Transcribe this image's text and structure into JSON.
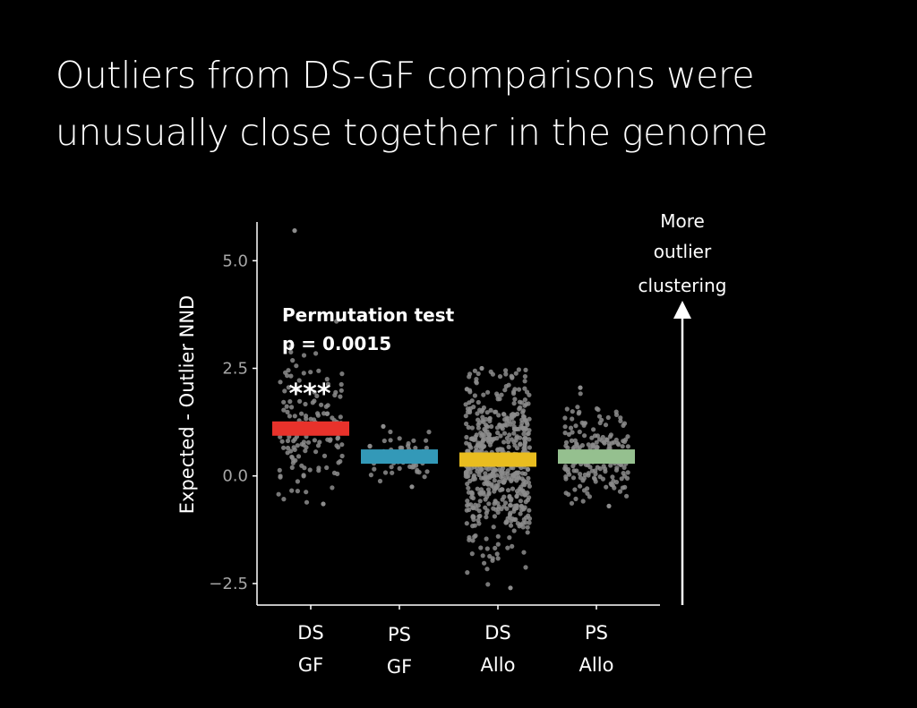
{
  "slide": {
    "title_lines": [
      "Outliers from DS-GF comparisons were",
      "unusually close together in the genome"
    ]
  },
  "chart_data": {
    "type": "scatter",
    "subtype": "strip-plot with mean bars",
    "title": "",
    "xlabel": "",
    "ylabel": "Expected - Outlier NND",
    "ylim": [
      -3.0,
      5.9
    ],
    "yticks": [
      -2.5,
      0.0,
      2.5,
      5.0
    ],
    "ytick_labels": [
      "−2.5",
      "0.0",
      "2.5",
      "5.0"
    ],
    "grid": false,
    "categories": [
      {
        "lines": [
          "DS",
          "GF"
        ]
      },
      {
        "lines": [
          "PS",
          "GF"
        ]
      },
      {
        "lines": [
          "DS",
          "Allo"
        ]
      },
      {
        "lines": [
          "PS",
          "Allo"
        ]
      }
    ],
    "groups": [
      {
        "mean": 1.1,
        "bar_color": "#e8322b",
        "n_points": 140,
        "range": [
          -0.65,
          5.7
        ]
      },
      {
        "mean": 0.45,
        "bar_color": "#3399b8",
        "n_points": 70,
        "range": [
          -0.25,
          1.15
        ]
      },
      {
        "mean": 0.38,
        "bar_color": "#e9bd1f",
        "n_points": 600,
        "range": [
          -2.6,
          2.5
        ]
      },
      {
        "mean": 0.45,
        "bar_color": "#95c08f",
        "n_points": 200,
        "range": [
          -0.7,
          2.05
        ]
      }
    ],
    "point_color": "#8c8c8c",
    "annotations": {
      "test_name": "Permutation test",
      "p_value": "p = 0.0015",
      "significance": "***"
    },
    "arrow_note_lines": [
      "More",
      "outlier",
      "clustering"
    ]
  }
}
